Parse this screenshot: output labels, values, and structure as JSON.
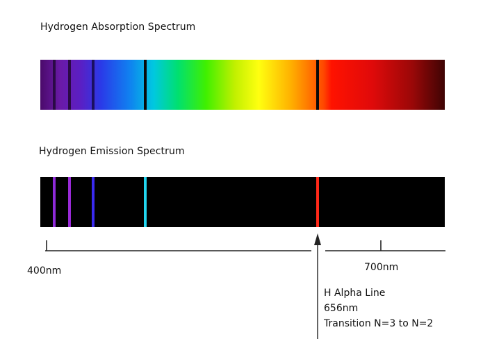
{
  "absorption": {
    "title": "Hydrogen Absorption Spectrum"
  },
  "emission": {
    "title": "Hydrogen Emission Spectrum"
  },
  "spectral_lines": [
    {
      "color": "#2a0a45",
      "emission_color": "#8e2ad8"
    },
    {
      "color": "#2a0a45",
      "emission_color": "#9a2ad8"
    },
    {
      "color": "#1a1060",
      "emission_color": "#3a2af0"
    },
    {
      "color": "#0a0a0a",
      "emission_color": "#22d6f0"
    },
    {
      "color": "#0a0a0a",
      "emission_color": "#ff2818"
    }
  ],
  "axis": {
    "label_400": "400nm",
    "label_700": "700nm"
  },
  "annotation": {
    "line1": "H Alpha Line",
    "line2": "656nm",
    "line3": "Transition N=3 to N=2"
  }
}
